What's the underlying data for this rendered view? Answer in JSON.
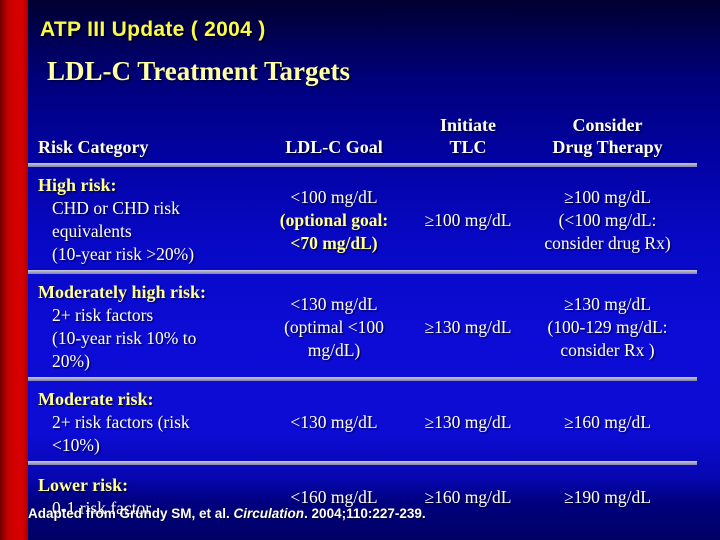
{
  "slide": {
    "kicker": "ATP III Update ( 2004 )",
    "title": "LDL-C Treatment Targets",
    "footnote": {
      "prefix": "Adapted from Grundy SM, et al. ",
      "journal": "Circulation",
      "suffix": ". 2004;110:227-239."
    }
  },
  "table": {
    "headers": [
      {
        "top": "",
        "bottom": "Risk Category"
      },
      {
        "top": "",
        "bottom": "LDL-C Goal"
      },
      {
        "top": "Initiate",
        "bottom": "TLC"
      },
      {
        "top": "Consider",
        "bottom": "Drug Therapy"
      }
    ],
    "rows": [
      {
        "category": {
          "title": "High risk:",
          "lines": [
            "CHD or CHD risk",
            "equivalents",
            "(10-year risk >20%)"
          ]
        },
        "goal": [
          "<100 mg/dL",
          "(optional goal:",
          "<70 mg/dL)"
        ],
        "tlc": "≥100 mg/dL",
        "drug": [
          "≥100 mg/dL",
          "(<100 mg/dL:",
          "consider drug Rx)"
        ]
      },
      {
        "category": {
          "title": "Moderately high risk:",
          "lines": [
            "2+ risk factors",
            "(10-year risk 10% to",
            "20%)"
          ]
        },
        "goal": [
          "<130 mg/dL",
          "(optimal <100",
          "mg/dL)"
        ],
        "tlc": "≥130 mg/dL",
        "drug": [
          "≥130 mg/dL",
          "(100-129 mg/dL:",
          "consider Rx )"
        ]
      },
      {
        "category": {
          "title": "Moderate risk:",
          "lines": [
            "2+ risk factors (risk",
            "<10%)"
          ]
        },
        "goal": [
          "<130 mg/dL"
        ],
        "tlc": "≥130 mg/dL",
        "drug": [
          "≥160 mg/dL"
        ]
      },
      {
        "category": {
          "title": "Lower risk:",
          "lines": [
            "0-1 risk factor"
          ]
        },
        "goal": [
          "<160 mg/dL"
        ],
        "tlc": "≥160 mg/dL",
        "drug": [
          "≥190 mg/dL"
        ]
      }
    ]
  },
  "colors": {
    "red_bar": "#D40000",
    "bg_top": "#000030",
    "bg_mid": "#0C0CD6",
    "bg_bottom": "#000064",
    "title_yellow": "#FBFB45",
    "subtitle_yellow": "#FFFFA8",
    "category_yellow": "#FFFF96",
    "text_white": "#FFFFFF",
    "divider_gray": "#A0A0C8"
  }
}
